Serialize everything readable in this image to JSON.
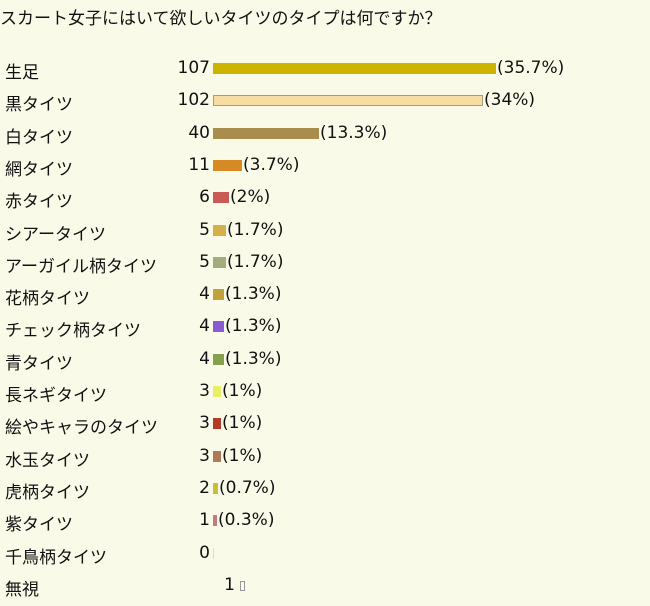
{
  "chart_data": {
    "type": "bar",
    "title": "スカート女子にはいて欲しいタイツのタイプは何ですか？",
    "categories": [
      "生足",
      "黒タイツ",
      "白タイツ",
      "網タイツ",
      "赤タイツ",
      "シアータイツ",
      "アーガイル柄タイツ",
      "花柄タイツ",
      "チェック柄タイツ",
      "青タイツ",
      "長ネギタイツ",
      "絵やキャラのタイツ",
      "水玉タイツ",
      "虎柄タイツ",
      "紫タイツ",
      "千鳥柄タイツ",
      "無視"
    ],
    "values": [
      107,
      102,
      40,
      11,
      6,
      5,
      5,
      4,
      4,
      4,
      3,
      3,
      3,
      2,
      1,
      0,
      1
    ],
    "percent_labels": [
      "(35.7%)",
      "(34%)",
      "(13.3%)",
      "(3.7%)",
      "(2%)",
      "(1.7%)",
      "(1.7%)",
      "(1.3%)",
      "(1.3%)",
      "(1.3%)",
      "(1%)",
      "(1%)",
      "(1%)",
      "(0.7%)",
      "(0.3%)",
      "",
      ""
    ],
    "colors": [
      "#ccb300",
      "#f7dca4",
      "#a88d4d",
      "#d58a24",
      "#c95a54",
      "#d4b04a",
      "#a3ac7c",
      "#c1a13d",
      "#8a5bd3",
      "#86a04d",
      "#e8ef63",
      "#b43a26",
      "#ad7959",
      "#c9c133",
      "#c57a7f",
      "#dcdcdc",
      ""
    ],
    "bar_outlines": [
      false,
      true,
      false,
      false,
      false,
      false,
      false,
      false,
      false,
      false,
      false,
      false,
      false,
      false,
      false,
      false,
      false
    ]
  }
}
